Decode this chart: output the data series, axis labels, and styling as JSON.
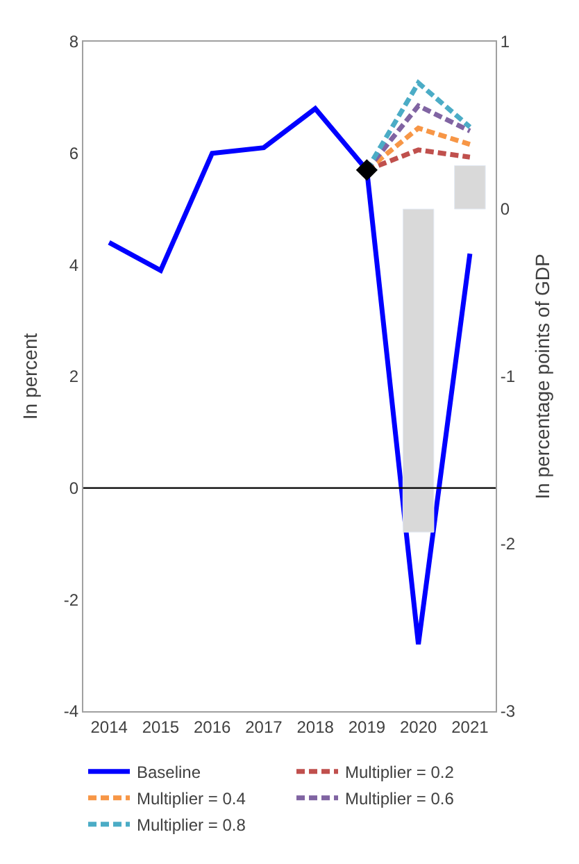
{
  "chart_data": {
    "type": "line",
    "ylabel": "In percent",
    "y2label": "In percentage points of GDP",
    "categories": [
      "2014",
      "2015",
      "2016",
      "2017",
      "2018",
      "2019",
      "2020",
      "2021"
    ],
    "ylim": [
      -4,
      8
    ],
    "yticks": [
      -4,
      -2,
      0,
      2,
      4,
      6,
      8
    ],
    "y2lim": [
      -3,
      1
    ],
    "y2ticks": [
      -3,
      -2,
      -1,
      0,
      1
    ],
    "legend": "bottom",
    "marker": "none",
    "ref_lines": [
      {
        "axis": "y",
        "value": 0,
        "color": "#000000"
      }
    ],
    "series": [
      {
        "type": "bar",
        "axis": "y2",
        "color": "#d9d9d9",
        "values": [
          null,
          null,
          null,
          null,
          null,
          null,
          -1.93,
          0.26
        ]
      },
      {
        "name": "Baseline",
        "color": "#0000ff",
        "line_style": "solid",
        "values": [
          4.4,
          3.9,
          6.0,
          6.1,
          6.8,
          5.7,
          -2.8,
          4.2
        ]
      },
      {
        "name": "Multiplier = 0.2",
        "color": "#c0504d",
        "line_style": "dashed",
        "values": [
          null,
          null,
          null,
          null,
          null,
          5.7,
          6.06,
          5.93
        ]
      },
      {
        "name": "Multiplier = 0.4",
        "color": "#f79646",
        "line_style": "dashed",
        "values": [
          null,
          null,
          null,
          null,
          null,
          5.7,
          6.45,
          6.16
        ]
      },
      {
        "name": "Multiplier = 0.6",
        "color": "#8064a2",
        "line_style": "dashed",
        "values": [
          null,
          null,
          null,
          null,
          null,
          5.7,
          6.85,
          6.4
        ]
      },
      {
        "name": "Multiplier = 0.8",
        "color": "#4bacc6",
        "line_style": "dashed",
        "values": [
          null,
          null,
          null,
          null,
          null,
          5.7,
          7.26,
          6.47
        ]
      },
      {
        "type": "scatter",
        "marker": "diamond",
        "color": "#000000",
        "values": [
          null,
          null,
          null,
          null,
          null,
          5.7,
          null,
          null
        ]
      }
    ]
  }
}
